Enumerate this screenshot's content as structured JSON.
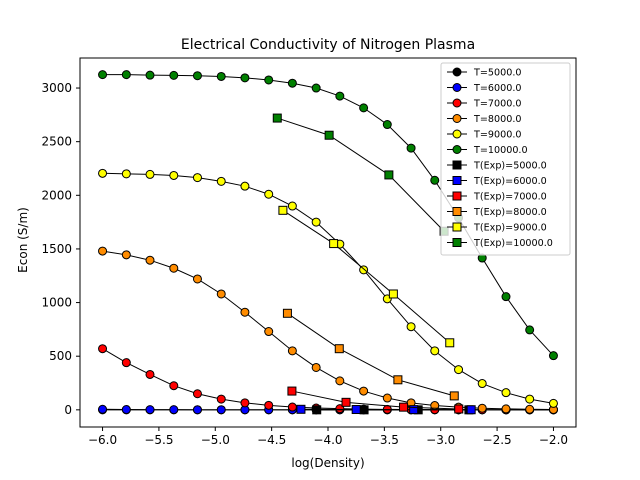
{
  "chart_data": {
    "type": "line",
    "title": "Electrical Conductivity of Nitrogen Plasma",
    "xlabel": "log(Density)",
    "ylabel": "Econ (S/m)",
    "xlim": [
      -6.2,
      -1.8
    ],
    "ylim": [
      -160,
      3280
    ],
    "xticks": [
      -6.0,
      -5.5,
      -5.0,
      -4.5,
      -4.0,
      -3.5,
      -3.0,
      -2.5,
      -2.0
    ],
    "xtick_labels": [
      "−6.0",
      "−5.5",
      "−5.0",
      "−4.5",
      "−4.0",
      "−3.5",
      "−3.0",
      "−2.5",
      "−2.0"
    ],
    "yticks": [
      0,
      500,
      1000,
      1500,
      2000,
      2500,
      3000
    ],
    "ytick_labels": [
      "0",
      "500",
      "1000",
      "1500",
      "2000",
      "2500",
      "3000"
    ],
    "grid": false,
    "legend_position": "top-right",
    "x": [
      -6.0,
      -5.789,
      -5.579,
      -5.368,
      -5.158,
      -4.947,
      -4.737,
      -4.526,
      -4.316,
      -4.105,
      -3.895,
      -3.684,
      -3.474,
      -3.263,
      -3.053,
      -2.842,
      -2.632,
      -2.421,
      -2.211,
      -2.0
    ],
    "series": [
      {
        "name": "T=5000.0",
        "marker": "circle",
        "color": "#000000",
        "values": [
          0,
          0,
          0,
          0,
          0,
          0,
          0,
          0,
          0,
          0,
          0,
          0,
          0,
          0,
          0,
          0,
          0,
          0,
          0,
          0
        ]
      },
      {
        "name": "T=6000.0",
        "marker": "circle",
        "color": "#0000ff",
        "values": [
          5,
          3,
          2,
          2,
          1,
          1,
          1,
          1,
          1,
          1,
          1,
          1,
          1,
          1,
          1,
          1,
          1,
          1,
          1,
          1
        ]
      },
      {
        "name": "T=7000.0",
        "marker": "circle",
        "color": "#ff0000",
        "values": [
          570,
          440,
          330,
          225,
          150,
          100,
          65,
          42,
          26,
          17,
          11,
          7,
          4,
          3,
          2,
          1,
          1,
          1,
          0,
          0
        ]
      },
      {
        "name": "T=8000.0",
        "marker": "circle",
        "color": "#ff8c00",
        "values": [
          1480,
          1445,
          1395,
          1320,
          1220,
          1080,
          910,
          730,
          550,
          395,
          270,
          175,
          110,
          65,
          40,
          25,
          15,
          9,
          5,
          3
        ]
      },
      {
        "name": "T=9000.0",
        "marker": "circle",
        "color": "#ffff00",
        "values": [
          2205,
          2200,
          2195,
          2185,
          2165,
          2130,
          2085,
          2010,
          1900,
          1750,
          1545,
          1305,
          1035,
          775,
          550,
          375,
          245,
          160,
          100,
          60
        ]
      },
      {
        "name": "T=10000.0",
        "marker": "circle",
        "color": "#008000",
        "values": [
          3125,
          3125,
          3120,
          3118,
          3115,
          3108,
          3095,
          3075,
          3045,
          3000,
          2925,
          2815,
          2660,
          2440,
          2140,
          1790,
          1415,
          1055,
          745,
          505
        ]
      },
      {
        "name": "T(Exp)=5000.0",
        "marker": "square",
        "color": "#000000",
        "points": [
          [
            -4.1,
            0
          ],
          [
            -3.68,
            0
          ],
          [
            -3.2,
            0
          ],
          [
            -2.75,
            0
          ]
        ]
      },
      {
        "name": "T(Exp)=6000.0",
        "marker": "square",
        "color": "#0000ff",
        "points": [
          [
            -4.24,
            5
          ],
          [
            -3.75,
            3
          ],
          [
            -3.24,
            2
          ],
          [
            -2.73,
            1
          ]
        ]
      },
      {
        "name": "T(Exp)=7000.0",
        "marker": "square",
        "color": "#ff0000",
        "points": [
          [
            -4.32,
            175
          ],
          [
            -3.84,
            70
          ],
          [
            -3.33,
            25
          ],
          [
            -2.84,
            8
          ]
        ]
      },
      {
        "name": "T(Exp)=8000.0",
        "marker": "square",
        "color": "#ff8c00",
        "points": [
          [
            -4.36,
            900
          ],
          [
            -3.9,
            570
          ],
          [
            -3.38,
            280
          ],
          [
            -2.88,
            130
          ]
        ]
      },
      {
        "name": "T(Exp)=9000.0",
        "marker": "square",
        "color": "#ffff00",
        "points": [
          [
            -4.4,
            1860
          ],
          [
            -3.95,
            1550
          ],
          [
            -3.42,
            1080
          ],
          [
            -2.92,
            625
          ]
        ]
      },
      {
        "name": "T(Exp)=10000.0",
        "marker": "square",
        "color": "#008000",
        "points": [
          [
            -4.45,
            2720
          ],
          [
            -3.99,
            2560
          ],
          [
            -3.46,
            2190
          ],
          [
            -2.97,
            1665
          ]
        ]
      }
    ]
  }
}
